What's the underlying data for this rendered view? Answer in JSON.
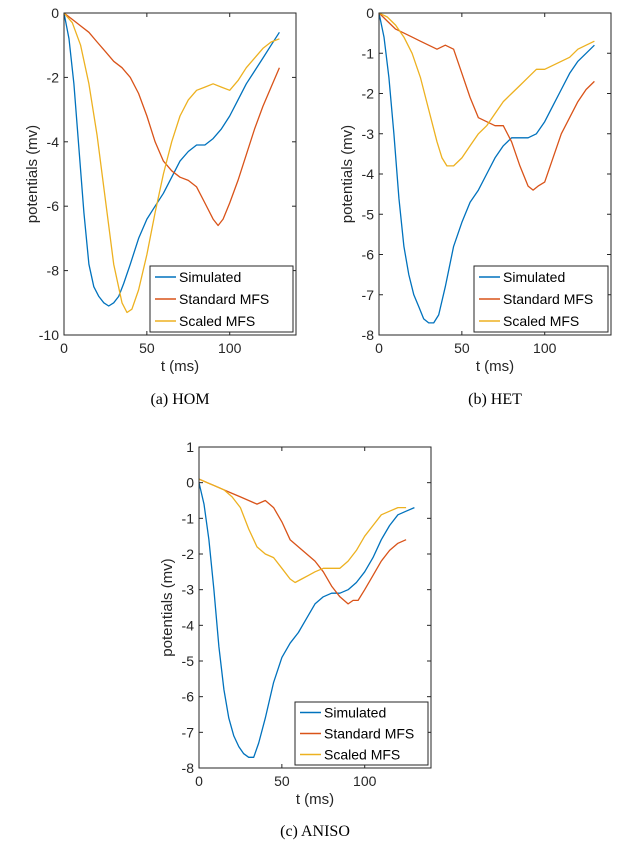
{
  "colors": {
    "simulated": "#0072BD",
    "standard": "#D95319",
    "scaled": "#EDB120"
  },
  "chart_data": [
    {
      "type": "line",
      "caption": "(a) HOM",
      "xlabel": "t (ms)",
      "ylabel": "potentials (mv)",
      "xlim": [
        0,
        140
      ],
      "ylim": [
        -10,
        0
      ],
      "xticks": [
        0,
        50,
        100
      ],
      "yticks": [
        0,
        -2,
        -4,
        -6,
        -8,
        -10
      ],
      "ytick_labels": [
        "0",
        "-2",
        "-4",
        "-6",
        "-8",
        "-10"
      ],
      "legend_position": "bottom-right",
      "series": [
        {
          "name": "Simulated",
          "color_key": "simulated",
          "x": [
            0,
            3,
            6,
            9,
            12,
            15,
            18,
            21,
            24,
            27,
            30,
            33,
            36,
            40,
            45,
            50,
            55,
            60,
            65,
            70,
            75,
            80,
            85,
            90,
            95,
            100,
            105,
            110,
            115,
            120,
            125,
            130
          ],
          "y": [
            0,
            -0.8,
            -2.2,
            -4.2,
            -6.2,
            -7.8,
            -8.5,
            -8.8,
            -9.0,
            -9.1,
            -9.0,
            -8.8,
            -8.4,
            -7.8,
            -7.0,
            -6.4,
            -6.0,
            -5.6,
            -5.1,
            -4.6,
            -4.3,
            -4.1,
            -4.1,
            -3.9,
            -3.6,
            -3.2,
            -2.7,
            -2.2,
            -1.8,
            -1.4,
            -1.0,
            -0.6
          ]
        },
        {
          "name": "Standard MFS",
          "color_key": "standard",
          "x": [
            0,
            5,
            10,
            15,
            20,
            25,
            30,
            35,
            40,
            45,
            50,
            55,
            60,
            65,
            70,
            75,
            80,
            85,
            90,
            93,
            96,
            100,
            105,
            110,
            115,
            120,
            125,
            130
          ],
          "y": [
            0,
            -0.2,
            -0.4,
            -0.6,
            -0.9,
            -1.2,
            -1.5,
            -1.7,
            -2.0,
            -2.5,
            -3.2,
            -4.0,
            -4.6,
            -4.9,
            -5.1,
            -5.2,
            -5.4,
            -5.9,
            -6.4,
            -6.6,
            -6.4,
            -5.9,
            -5.2,
            -4.4,
            -3.6,
            -2.9,
            -2.3,
            -1.7
          ]
        },
        {
          "name": "Scaled MFS",
          "color_key": "scaled",
          "x": [
            0,
            5,
            10,
            15,
            20,
            25,
            30,
            35,
            38,
            41,
            45,
            50,
            55,
            60,
            65,
            70,
            75,
            80,
            85,
            90,
            95,
            100,
            105,
            110,
            115,
            120,
            125,
            130
          ],
          "y": [
            0,
            -0.3,
            -1.0,
            -2.2,
            -3.8,
            -5.8,
            -7.8,
            -9.0,
            -9.3,
            -9.2,
            -8.6,
            -7.5,
            -6.2,
            -5.0,
            -4.0,
            -3.2,
            -2.7,
            -2.4,
            -2.3,
            -2.2,
            -2.3,
            -2.4,
            -2.1,
            -1.7,
            -1.4,
            -1.1,
            -0.9,
            -0.8
          ]
        }
      ]
    },
    {
      "type": "line",
      "caption": "(b) HET",
      "xlabel": "t (ms)",
      "ylabel": "potentials (mv)",
      "xlim": [
        0,
        140
      ],
      "ylim": [
        -8,
        0
      ],
      "xticks": [
        0,
        50,
        100
      ],
      "yticks": [
        0,
        -1,
        -2,
        -3,
        -4,
        -5,
        -6,
        -7,
        -8
      ],
      "ytick_labels": [
        "0",
        "-1",
        "-2",
        "-3",
        "-4",
        "-5",
        "-6",
        "-7",
        "-8"
      ],
      "legend_position": "bottom-right",
      "series": [
        {
          "name": "Simulated",
          "color_key": "simulated",
          "x": [
            0,
            3,
            6,
            9,
            12,
            15,
            18,
            21,
            24,
            27,
            30,
            33,
            36,
            40,
            45,
            50,
            55,
            60,
            65,
            70,
            75,
            80,
            85,
            90,
            95,
            100,
            105,
            110,
            115,
            120,
            125,
            130
          ],
          "y": [
            0,
            -0.6,
            -1.6,
            -3.0,
            -4.6,
            -5.8,
            -6.5,
            -7.0,
            -7.3,
            -7.6,
            -7.7,
            -7.7,
            -7.5,
            -6.8,
            -5.8,
            -5.2,
            -4.7,
            -4.4,
            -4.0,
            -3.6,
            -3.3,
            -3.1,
            -3.1,
            -3.1,
            -3.0,
            -2.7,
            -2.3,
            -1.9,
            -1.5,
            -1.2,
            -1.0,
            -0.8
          ]
        },
        {
          "name": "Standard MFS",
          "color_key": "standard",
          "x": [
            0,
            5,
            10,
            15,
            20,
            25,
            30,
            35,
            40,
            45,
            50,
            55,
            60,
            65,
            70,
            75,
            80,
            85,
            90,
            93,
            96,
            100,
            105,
            110,
            115,
            120,
            125,
            130
          ],
          "y": [
            0,
            -0.2,
            -0.4,
            -0.5,
            -0.6,
            -0.7,
            -0.8,
            -0.9,
            -0.8,
            -0.9,
            -1.5,
            -2.1,
            -2.6,
            -2.7,
            -2.8,
            -2.8,
            -3.2,
            -3.8,
            -4.3,
            -4.4,
            -4.3,
            -4.2,
            -3.6,
            -3.0,
            -2.6,
            -2.2,
            -1.9,
            -1.7
          ]
        },
        {
          "name": "Scaled MFS",
          "color_key": "scaled",
          "x": [
            0,
            5,
            10,
            15,
            20,
            25,
            30,
            35,
            38,
            41,
            45,
            50,
            55,
            60,
            65,
            70,
            75,
            80,
            85,
            90,
            95,
            100,
            105,
            110,
            115,
            120,
            125,
            130
          ],
          "y": [
            0,
            -0.1,
            -0.3,
            -0.6,
            -1.0,
            -1.6,
            -2.4,
            -3.2,
            -3.6,
            -3.8,
            -3.8,
            -3.6,
            -3.3,
            -3.0,
            -2.8,
            -2.5,
            -2.2,
            -2.0,
            -1.8,
            -1.6,
            -1.4,
            -1.4,
            -1.3,
            -1.2,
            -1.1,
            -0.9,
            -0.8,
            -0.7
          ]
        }
      ]
    },
    {
      "type": "line",
      "caption": "(c) ANISO",
      "xlabel": "t (ms)",
      "ylabel": "potentials (mv)",
      "xlim": [
        0,
        140
      ],
      "ylim": [
        -8,
        1
      ],
      "xticks": [
        0,
        50,
        100
      ],
      "yticks": [
        1,
        0,
        -1,
        -2,
        -3,
        -4,
        -5,
        -6,
        -7,
        -8
      ],
      "ytick_labels": [
        "1",
        "0",
        "-1",
        "-2",
        "-3",
        "-4",
        "-5",
        "-6",
        "-7",
        "-8"
      ],
      "legend_position": "bottom-right",
      "series": [
        {
          "name": "Simulated",
          "color_key": "simulated",
          "x": [
            0,
            3,
            6,
            9,
            12,
            15,
            18,
            21,
            24,
            27,
            30,
            33,
            36,
            40,
            45,
            50,
            55,
            60,
            65,
            70,
            75,
            80,
            85,
            90,
            95,
            100,
            105,
            110,
            115,
            120,
            125,
            130
          ],
          "y": [
            0,
            -0.6,
            -1.6,
            -3.0,
            -4.6,
            -5.8,
            -6.6,
            -7.1,
            -7.4,
            -7.6,
            -7.7,
            -7.7,
            -7.3,
            -6.6,
            -5.6,
            -4.9,
            -4.5,
            -4.2,
            -3.8,
            -3.4,
            -3.2,
            -3.1,
            -3.1,
            -3.0,
            -2.8,
            -2.5,
            -2.1,
            -1.6,
            -1.2,
            -0.9,
            -0.8,
            -0.7
          ]
        },
        {
          "name": "Standard MFS",
          "color_key": "standard",
          "x": [
            0,
            5,
            10,
            15,
            20,
            25,
            30,
            35,
            40,
            45,
            50,
            55,
            60,
            65,
            70,
            75,
            80,
            85,
            90,
            93,
            96,
            100,
            105,
            110,
            115,
            120,
            125
          ],
          "y": [
            0.1,
            0.0,
            -0.1,
            -0.2,
            -0.3,
            -0.4,
            -0.5,
            -0.6,
            -0.5,
            -0.7,
            -1.1,
            -1.6,
            -1.8,
            -2.0,
            -2.2,
            -2.5,
            -2.9,
            -3.2,
            -3.4,
            -3.3,
            -3.3,
            -3.0,
            -2.6,
            -2.2,
            -1.9,
            -1.7,
            -1.6
          ]
        },
        {
          "name": "Scaled MFS",
          "color_key": "scaled",
          "x": [
            0,
            5,
            10,
            15,
            20,
            25,
            30,
            35,
            40,
            45,
            50,
            55,
            58,
            62,
            66,
            70,
            75,
            80,
            85,
            90,
            95,
            100,
            105,
            110,
            115,
            120,
            125
          ],
          "y": [
            0.1,
            0.0,
            -0.1,
            -0.2,
            -0.4,
            -0.7,
            -1.3,
            -1.8,
            -2.0,
            -2.1,
            -2.4,
            -2.7,
            -2.8,
            -2.7,
            -2.6,
            -2.5,
            -2.4,
            -2.4,
            -2.4,
            -2.2,
            -1.9,
            -1.5,
            -1.2,
            -0.9,
            -0.8,
            -0.7,
            -0.7
          ]
        }
      ]
    }
  ]
}
